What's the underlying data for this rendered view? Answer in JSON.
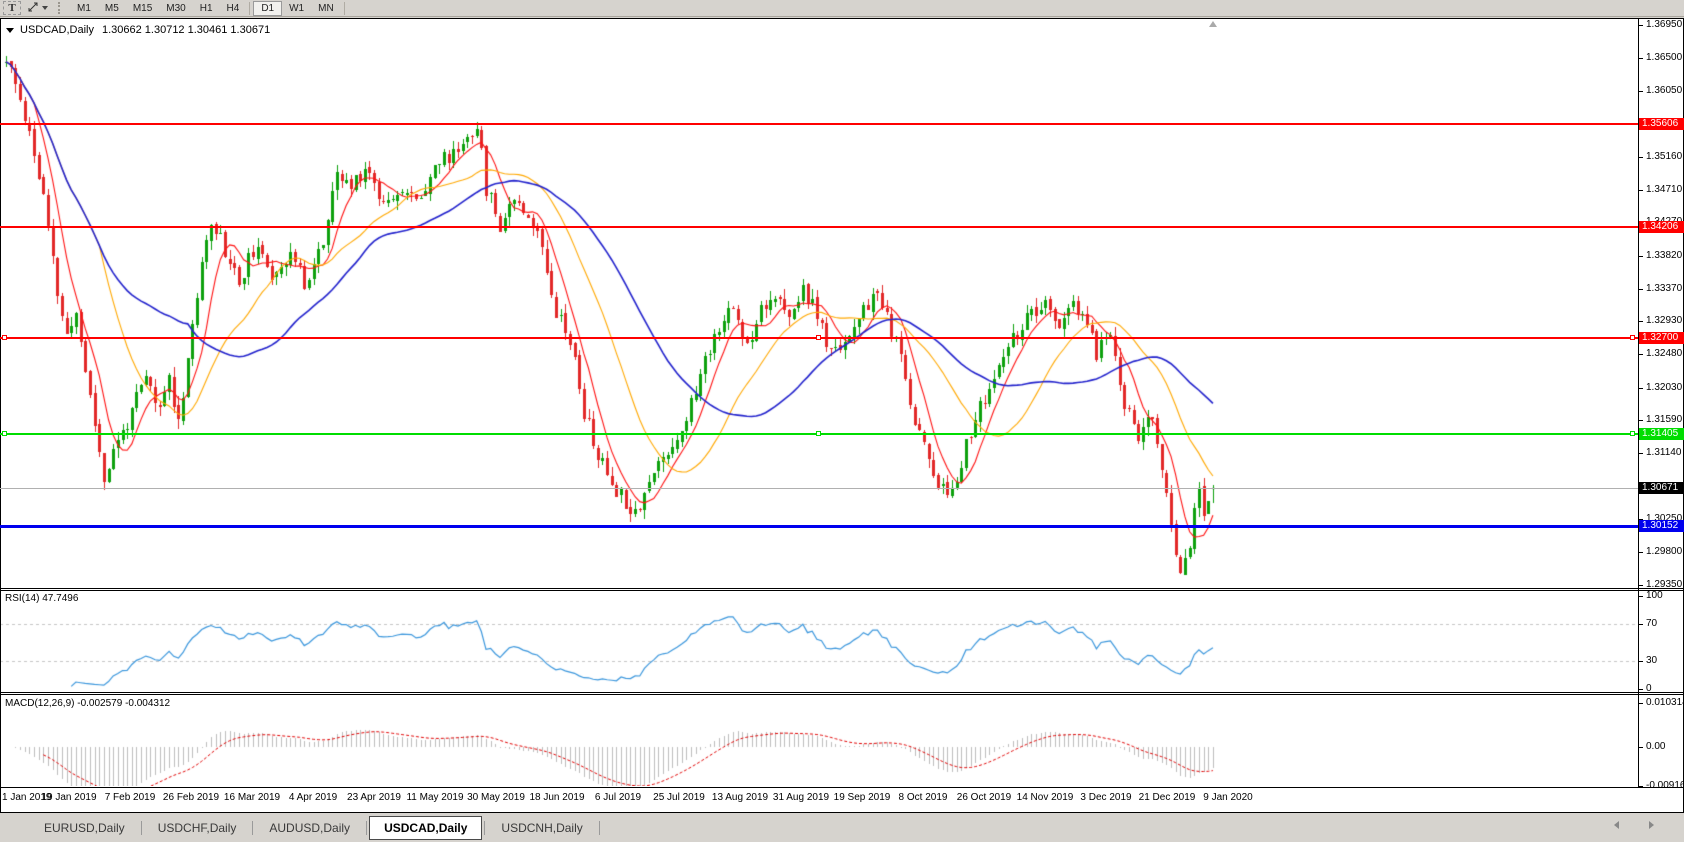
{
  "toolbar": {
    "text_tool_label": "T",
    "timeframes": [
      "M1",
      "M5",
      "M15",
      "M30",
      "H1",
      "H4",
      "D1",
      "W1",
      "MN"
    ],
    "active_timeframe": "D1"
  },
  "chart_header": {
    "symbol": "USDCAD,Daily",
    "ohlc": "1.30662 1.30712 1.30461 1.30671"
  },
  "price_axis": {
    "ticks": [
      "1.36950",
      "1.36500",
      "1.36050",
      "1.35160",
      "1.34710",
      "1.34270",
      "1.33820",
      "1.33370",
      "1.32930",
      "1.32480",
      "1.32030",
      "1.31590",
      "1.31140",
      "1.30250",
      "1.29800",
      "1.29350"
    ],
    "current_label": "1.30671"
  },
  "rsi_panel": {
    "label": "RSI(14) 47.7496",
    "axis": [
      "100",
      "70",
      "30",
      "0"
    ],
    "axis_values": [
      100,
      70,
      30,
      0
    ],
    "levels": [
      70,
      30
    ],
    "line_color": "#3a96dc"
  },
  "macd_panel": {
    "label": "MACD(12,26,9) -0.002579 -0.004312",
    "axis": [
      "0.010314",
      "0.00",
      "-0.009166"
    ],
    "axis_values": [
      0.010314,
      0,
      -0.009166
    ],
    "histogram_color": "#bdbdbd",
    "signal_color": "#e00000"
  },
  "date_axis": [
    "1 Jan 2019",
    "19 Jan 2019",
    "7 Feb 2019",
    "26 Feb 2019",
    "16 Mar 2019",
    "4 Apr 2019",
    "23 Apr 2019",
    "11 May 2019",
    "30 May 2019",
    "18 Jun 2019",
    "6 Jul 2019",
    "25 Jul 2019",
    "13 Aug 2019",
    "31 Aug 2019",
    "19 Sep 2019",
    "8 Oct 2019",
    "26 Oct 2019",
    "14 Nov 2019",
    "3 Dec 2019",
    "21 Dec 2019",
    "9 Jan 2020"
  ],
  "tabs": {
    "items": [
      "EURUSD,Daily",
      "USDCHF,Daily",
      "AUDUSD,Daily",
      "USDCAD,Daily",
      "USDCNH,Daily"
    ],
    "active_index": 3
  },
  "chart_data": {
    "type": "candlestick",
    "symbol": "USDCAD",
    "timeframe": "Daily",
    "open": 1.30662,
    "high": 1.30712,
    "low": 1.30461,
    "close": 1.30671,
    "price_axis_range": [
      1.29309,
      1.37018
    ],
    "x_range": [
      "1 Jan 2019",
      "9 Jan 2020"
    ],
    "n_candles": 260,
    "seed": 11,
    "up_color": "#0da10d",
    "down_color": "#e22828",
    "price_path_anchors": [
      [
        0,
        1.3645
      ],
      [
        3,
        1.3595
      ],
      [
        5,
        1.355
      ],
      [
        8,
        1.346
      ],
      [
        11,
        1.333
      ],
      [
        13,
        1.327
      ],
      [
        15,
        1.3305
      ],
      [
        18,
        1.319
      ],
      [
        21,
        1.308
      ],
      [
        24,
        1.313
      ],
      [
        27,
        1.317
      ],
      [
        30,
        1.3215
      ],
      [
        33,
        1.317
      ],
      [
        35,
        1.322
      ],
      [
        37,
        1.3155
      ],
      [
        40,
        1.329
      ],
      [
        44,
        1.3435
      ],
      [
        47,
        1.339
      ],
      [
        50,
        1.3345
      ],
      [
        53,
        1.339
      ],
      [
        57,
        1.336
      ],
      [
        61,
        1.3385
      ],
      [
        64,
        1.3345
      ],
      [
        68,
        1.34
      ],
      [
        71,
        1.349
      ],
      [
        74,
        1.3475
      ],
      [
        77,
        1.3505
      ],
      [
        81,
        1.3455
      ],
      [
        84,
        1.3475
      ],
      [
        88,
        1.3455
      ],
      [
        92,
        1.3505
      ],
      [
        96,
        1.352
      ],
      [
        99,
        1.3545
      ],
      [
        101,
        1.356
      ],
      [
        103,
        1.3475
      ],
      [
        106,
        1.3425
      ],
      [
        109,
        1.3465
      ],
      [
        112,
        1.344
      ],
      [
        115,
        1.3395
      ],
      [
        118,
        1.331
      ],
      [
        121,
        1.327
      ],
      [
        124,
        1.317
      ],
      [
        127,
        1.311
      ],
      [
        130,
        1.3075
      ],
      [
        133,
        1.305
      ],
      [
        135,
        1.3035
      ],
      [
        138,
        1.3075
      ],
      [
        141,
        1.311
      ],
      [
        144,
        1.3135
      ],
      [
        147,
        1.318
      ],
      [
        150,
        1.324
      ],
      [
        153,
        1.329
      ],
      [
        156,
        1.331
      ],
      [
        159,
        1.326
      ],
      [
        162,
        1.3315
      ],
      [
        165,
        1.333
      ],
      [
        168,
        1.329
      ],
      [
        171,
        1.334
      ],
      [
        174,
        1.33
      ],
      [
        177,
        1.3245
      ],
      [
        180,
        1.327
      ],
      [
        183,
        1.329
      ],
      [
        186,
        1.333
      ],
      [
        189,
        1.33
      ],
      [
        192,
        1.324
      ],
      [
        195,
        1.316
      ],
      [
        199,
        1.309
      ],
      [
        202,
        1.305
      ],
      [
        205,
        1.3105
      ],
      [
        208,
        1.316
      ],
      [
        211,
        1.32
      ],
      [
        214,
        1.324
      ],
      [
        217,
        1.328
      ],
      [
        220,
        1.33
      ],
      [
        223,
        1.331
      ],
      [
        226,
        1.329
      ],
      [
        229,
        1.331
      ],
      [
        232,
        1.329
      ],
      [
        234,
        1.325
      ],
      [
        237,
        1.328
      ],
      [
        240,
        1.318
      ],
      [
        243,
        1.314
      ],
      [
        246,
        1.316
      ],
      [
        248,
        1.309
      ],
      [
        250,
        1.301
      ],
      [
        252,
        1.296
      ],
      [
        254,
        1.299
      ],
      [
        256,
        1.307
      ],
      [
        257,
        1.3035
      ],
      [
        258,
        1.306
      ],
      [
        259,
        1.30671
      ]
    ],
    "moving_averages": [
      {
        "period": 7,
        "color": "#ff1111"
      },
      {
        "period": 21,
        "color": "#ffa800"
      },
      {
        "period": 40,
        "color": "#2222cc"
      }
    ],
    "rsi": {
      "period": 14,
      "current": 47.7496
    },
    "macd": {
      "fast": 12,
      "slow": 26,
      "signal": 9,
      "current_main": -0.002579,
      "current_signal": -0.004312
    },
    "horizontal_lines": [
      {
        "name": "resistance-upper",
        "price": 1.35606,
        "label": "1.35606",
        "color": "#ff0000",
        "thickness": 2,
        "selected": false
      },
      {
        "name": "resistance-mid",
        "price": 1.34206,
        "label": "1.34206",
        "color": "#ff0000",
        "thickness": 2,
        "selected": false
      },
      {
        "name": "resistance-lower",
        "price": 1.327,
        "label": "1.32700",
        "color": "#ff0000",
        "thickness": 2,
        "selected": true
      },
      {
        "name": "support-green",
        "price": 1.31405,
        "label": "1.31405",
        "color": "#00dd00",
        "thickness": 2,
        "selected": true
      },
      {
        "name": "support-blue",
        "price": 1.30152,
        "label": "1.30152",
        "color": "#0000ee",
        "thickness": 3,
        "selected": false
      }
    ]
  }
}
